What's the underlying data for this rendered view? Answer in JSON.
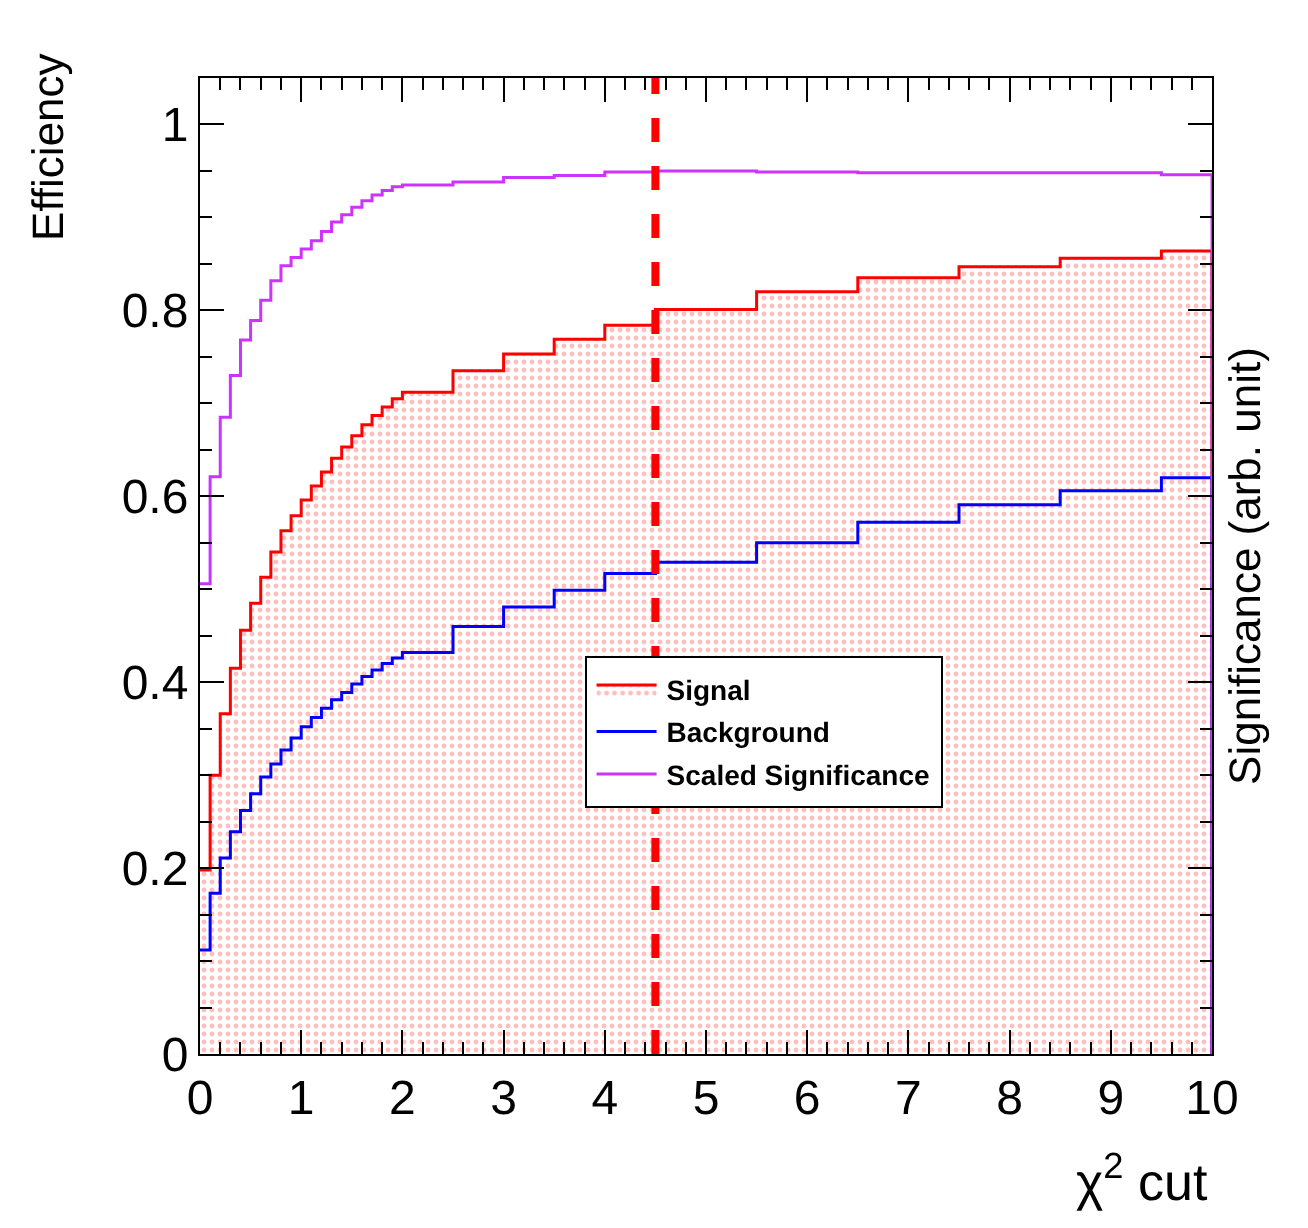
{
  "chart_data": {
    "type": "step",
    "xlabel": "χ$^{2}$ cut",
    "ylabel": "Efficiency",
    "y2label": "Significance (arb. unit)",
    "xlim": [
      0,
      10
    ],
    "xticks": [
      0,
      1,
      2,
      3,
      4,
      5,
      6,
      7,
      8,
      9,
      10
    ],
    "ylim": [
      0,
      1.05
    ],
    "yticks": [
      0,
      0.2,
      0.4,
      0.6,
      0.8,
      1
    ],
    "grid": false,
    "legend": "center",
    "marker": "none",
    "line_style": "solid",
    "x": [
      0,
      0.1,
      0.2,
      0.3,
      0.4,
      0.5,
      0.6,
      0.7,
      0.8,
      0.9,
      1.0,
      1.1,
      1.2,
      1.3,
      1.4,
      1.5,
      1.6,
      1.7,
      1.8,
      1.9,
      2.0,
      2.5,
      3.0,
      3.5,
      4.0,
      4.5,
      5.5,
      6.5,
      7.5,
      8.5,
      9.5,
      10
    ],
    "series": [
      {
        "name": "Signal",
        "type": "area",
        "color": "#ff0000",
        "values": [
          0.198,
          0.3,
          0.366,
          0.415,
          0.456,
          0.485,
          0.513,
          0.54,
          0.563,
          0.579,
          0.596,
          0.611,
          0.626,
          0.641,
          0.653,
          0.665,
          0.677,
          0.687,
          0.696,
          0.705,
          0.712,
          0.735,
          0.753,
          0.769,
          0.784,
          0.801,
          0.82,
          0.835,
          0.847,
          0.856,
          0.864,
          0
        ]
      },
      {
        "name": "Background",
        "color": "#0000ff",
        "values": [
          0.112,
          0.173,
          0.211,
          0.239,
          0.262,
          0.28,
          0.298,
          0.312,
          0.327,
          0.34,
          0.352,
          0.362,
          0.372,
          0.381,
          0.389,
          0.398,
          0.406,
          0.413,
          0.42,
          0.426,
          0.432,
          0.46,
          0.481,
          0.499,
          0.517,
          0.529,
          0.55,
          0.572,
          0.591,
          0.606,
          0.62,
          0
        ]
      },
      {
        "name": "Scaled Significance",
        "color": "#cc33ff",
        "values": [
          0.506,
          0.621,
          0.685,
          0.73,
          0.768,
          0.789,
          0.811,
          0.832,
          0.848,
          0.857,
          0.866,
          0.875,
          0.885,
          0.895,
          0.903,
          0.911,
          0.918,
          0.924,
          0.929,
          0.933,
          0.935,
          0.938,
          0.943,
          0.945,
          0.949,
          0.95,
          0.949,
          0.948,
          0.948,
          0.948,
          0.946,
          0
        ]
      }
    ],
    "ref_lines": [
      {
        "axis": "x",
        "value": 4.5,
        "color": "#ff0000",
        "line_style": "dashed"
      }
    ]
  }
}
